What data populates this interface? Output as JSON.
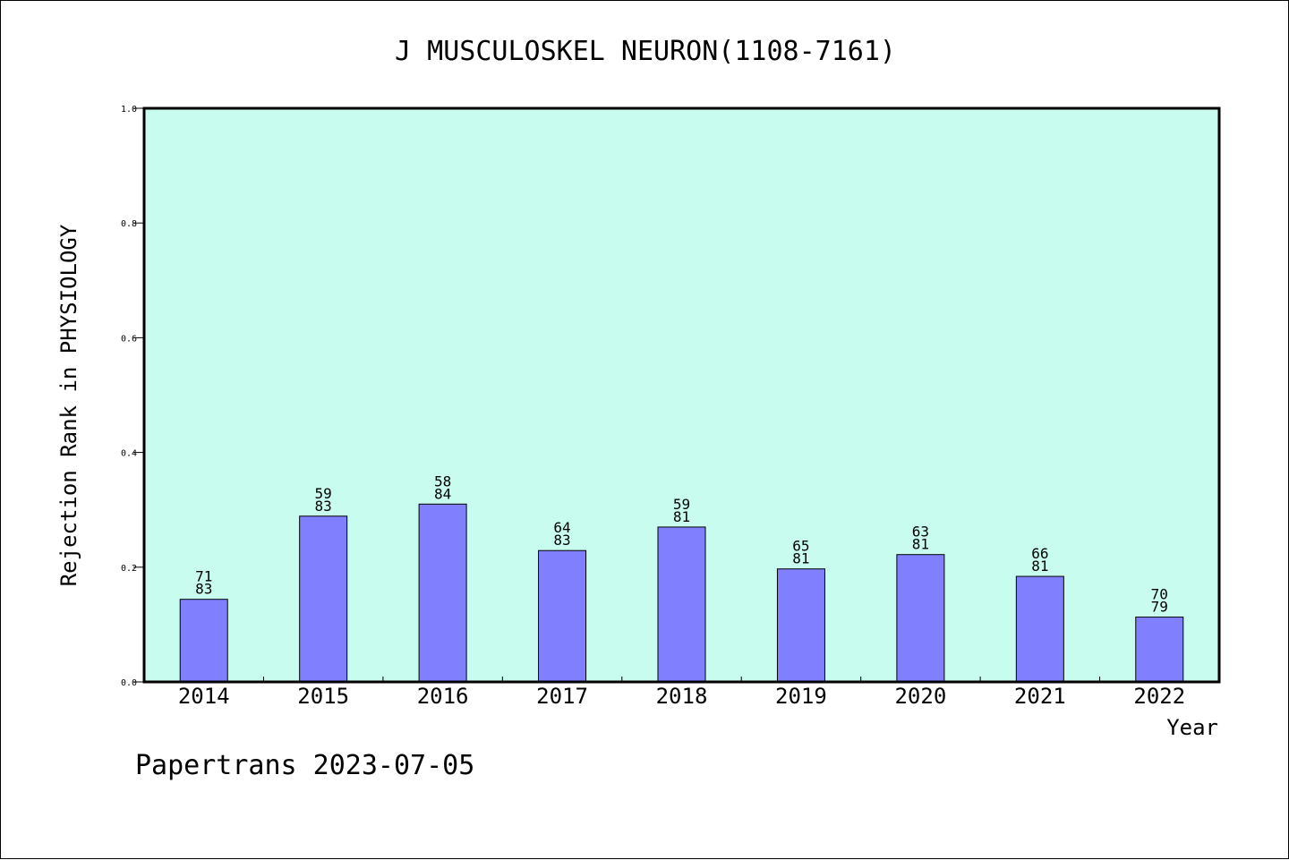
{
  "chart_data": {
    "type": "bar",
    "title": "J MUSCULOSKEL NEURON(1108-7161)",
    "xlabel": "Year",
    "ylabel": "Rejection Rank in PHYSIOLOGY",
    "ylim": [
      0,
      1.0
    ],
    "yticks": [
      "0.0",
      "0.2",
      "0.4",
      "0.6",
      "0.8",
      "1.0"
    ],
    "categories": [
      "2014",
      "2015",
      "2016",
      "2017",
      "2018",
      "2019",
      "2020",
      "2021",
      "2022"
    ],
    "values": [
      0.144,
      0.289,
      0.31,
      0.229,
      0.27,
      0.197,
      0.222,
      0.184,
      0.113
    ],
    "labels_top": [
      "71",
      "59",
      "58",
      "64",
      "59",
      "65",
      "63",
      "66",
      "70"
    ],
    "labels_bottom": [
      "83",
      "83",
      "84",
      "83",
      "81",
      "81",
      "81",
      "81",
      "79"
    ],
    "grid": false,
    "colors": {
      "plot_bg": "#c8fcee",
      "bar": "#8080ff",
      "bar_edge": "#000000"
    }
  },
  "footer": {
    "credit": "Papertrans 2023-07-05"
  }
}
